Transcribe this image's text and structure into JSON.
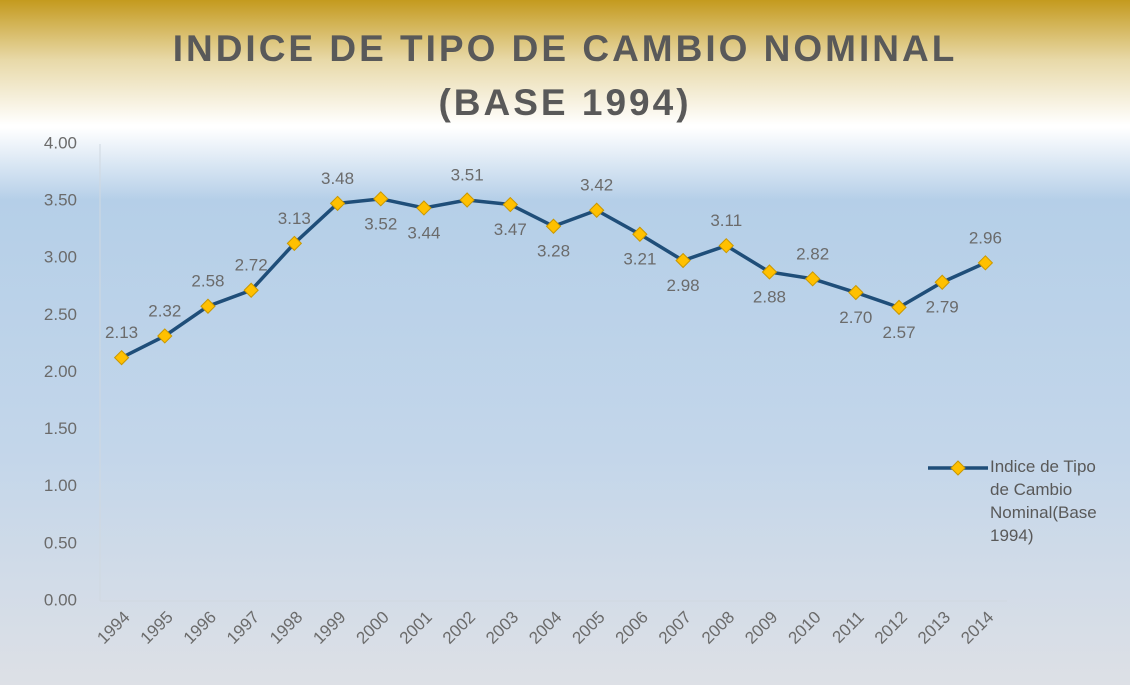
{
  "chart_data": {
    "type": "line",
    "title": "INDICE DE TIPO DE CAMBIO NOMINAL (BASE 1994)",
    "categories": [
      "1994",
      "1995",
      "1996",
      "1997",
      "1998",
      "1999",
      "2000",
      "2001",
      "2002",
      "2003",
      "2004",
      "2005",
      "2006",
      "2007",
      "2008",
      "2009",
      "2010",
      "2011",
      "2012",
      "2013",
      "2014"
    ],
    "series": [
      {
        "name": "Indice de Tipo de Cambio Nominal(Base 1994)",
        "color": "#1f4e79",
        "marker_color": "#ffc000",
        "values": [
          2.13,
          2.32,
          2.58,
          2.72,
          3.13,
          3.48,
          3.52,
          3.44,
          3.51,
          3.47,
          3.28,
          3.42,
          3.21,
          2.98,
          3.11,
          2.88,
          2.82,
          2.7,
          2.57,
          2.79,
          2.96
        ],
        "value_labels": [
          "2.13",
          "2.32",
          "2.58",
          "2.72",
          "3.13",
          "3.48",
          "3.52",
          "3.44",
          "3.51",
          "3.47",
          "3.28",
          "3.42",
          "3.21",
          "2.98",
          "3.11",
          "2.88",
          "2.82",
          "2.70",
          "2.57",
          "2.79",
          "2.96"
        ]
      }
    ],
    "ylim": [
      0,
      4
    ],
    "yticks": [
      {
        "value": 0,
        "label": "0.00"
      },
      {
        "value": 0.5,
        "label": "0.50"
      },
      {
        "value": 1,
        "label": "1.00"
      },
      {
        "value": 1.5,
        "label": "1.50"
      },
      {
        "value": 2,
        "label": "2.00"
      },
      {
        "value": 2.5,
        "label": "2.50"
      },
      {
        "value": 3,
        "label": "3.00"
      },
      {
        "value": 3.5,
        "label": "3.50"
      },
      {
        "value": 4,
        "label": "4.00"
      }
    ],
    "legend": "right",
    "grid": false
  }
}
